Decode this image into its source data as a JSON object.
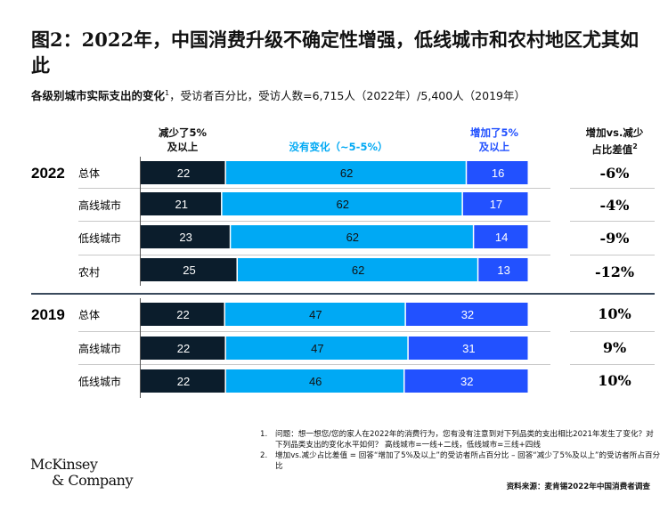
{
  "title": "图2：2022年，中国消费升级不确定性增强，低线城市和农村地区尤其如此",
  "subtitle": {
    "bold": "各级别城市实际支出的变化",
    "footnote_ref": "1",
    "rest": "，受访者百分比，受访人数=6,715人（2022年）/5,400人（2019年）"
  },
  "headers": {
    "decrease": [
      "减少了5%",
      "及以上"
    ],
    "nochange": "没有变化（~5-5%）",
    "increase": [
      "增加了5%",
      "及以上"
    ],
    "diff": [
      "增加vs.减少",
      "占比差值"
    ],
    "diff_ref": "2"
  },
  "colors": {
    "decrease": "#0b1d2c",
    "nochange": "#00a9f4",
    "increase": "#2251ff",
    "increase_header": "#2251ff",
    "nochange_header": "#00a9f4"
  },
  "chart_data": {
    "type": "bar",
    "stacked": true,
    "orientation": "horizontal",
    "title": "各级别城市实际支出的变化，受访者百分比",
    "series_names": [
      "减少了5%及以上",
      "没有变化（~5-5%）",
      "增加了5%及以上"
    ],
    "groups": [
      {
        "year": "2022",
        "rows": [
          {
            "label": "总体",
            "values": [
              22,
              62,
              16
            ],
            "diff": "-6%"
          },
          {
            "label": "高线城市",
            "values": [
              21,
              62,
              17
            ],
            "diff": "-4%"
          },
          {
            "label": "低线城市",
            "values": [
              23,
              62,
              14
            ],
            "diff": "-9%"
          },
          {
            "label": "农村",
            "values": [
              25,
              62,
              13
            ],
            "diff": "-12%"
          }
        ]
      },
      {
        "year": "2019",
        "rows": [
          {
            "label": "总体",
            "values": [
              22,
              47,
              32
            ],
            "diff": "10%"
          },
          {
            "label": "高线城市",
            "values": [
              22,
              47,
              31
            ],
            "diff": "9%"
          },
          {
            "label": "低线城市",
            "values": [
              22,
              46,
              32
            ],
            "diff": "10%"
          }
        ]
      }
    ],
    "xlim": [
      0,
      100
    ]
  },
  "notes": [
    {
      "num": "1.",
      "text": "问题：想一想您/您的家人在2022年的消费行为，您有没有注意到对下列品类的支出相比2021年发生了变化？对下列品类支出的变化水平如何？ 高线城市=一线+二线，低线城市=三线+四线"
    },
    {
      "num": "2.",
      "text": "增加vs.减少占比差值 = 回答“增加了5%及以上”的受访者所占百分比 – 回答“减少了5%及以上”的受访者所占百分比"
    }
  ],
  "source": "资料来源：麦肯锡2022年中国消费者调查",
  "logo": [
    "McKinsey",
    "& Company"
  ]
}
